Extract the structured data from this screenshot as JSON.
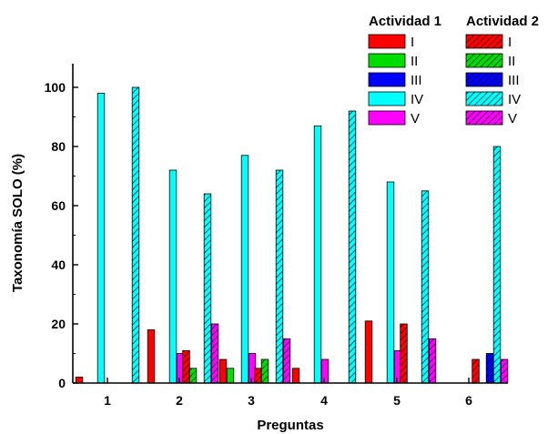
{
  "chart_data": {
    "type": "bar",
    "xlabel": "Preguntas",
    "ylabel": "Taxonomía SOLO (%)",
    "ylim": [
      0,
      108
    ],
    "y_ticks": [
      0,
      20,
      40,
      60,
      80,
      100
    ],
    "categories": [
      "1",
      "2",
      "3",
      "4",
      "5",
      "6"
    ],
    "levels": [
      "I",
      "II",
      "III",
      "IV",
      "V"
    ],
    "level_colors": [
      "#ff0000",
      "#00dd00",
      "#0000ff",
      "#00ffff",
      "#ff00ff"
    ],
    "groups": [
      {
        "name": "Actividad 1",
        "pattern": "solid",
        "series": [
          {
            "name": "I",
            "values": [
              2,
              18,
              8,
              5,
              21,
              0
            ]
          },
          {
            "name": "II",
            "values": [
              0,
              0,
              5,
              0,
              0,
              0
            ]
          },
          {
            "name": "III",
            "values": [
              0,
              0,
              0,
              0,
              0,
              0
            ]
          },
          {
            "name": "IV",
            "values": [
              98,
              72,
              77,
              87,
              68,
              0
            ]
          },
          {
            "name": "V",
            "values": [
              0,
              10,
              10,
              8,
              11,
              0
            ]
          }
        ]
      },
      {
        "name": "Actividad 2",
        "pattern": "hatched",
        "series": [
          {
            "name": "I",
            "values": [
              0,
              11,
              5,
              0,
              20,
              8
            ]
          },
          {
            "name": "II",
            "values": [
              0,
              5,
              8,
              0,
              0,
              0
            ]
          },
          {
            "name": "III",
            "values": [
              0,
              0,
              0,
              0,
              0,
              10
            ]
          },
          {
            "name": "IV",
            "values": [
              100,
              64,
              72,
              92,
              65,
              80
            ]
          },
          {
            "name": "V",
            "values": [
              0,
              20,
              15,
              0,
              15,
              8
            ]
          }
        ]
      }
    ],
    "legend_position": "top-right",
    "grid": false
  }
}
